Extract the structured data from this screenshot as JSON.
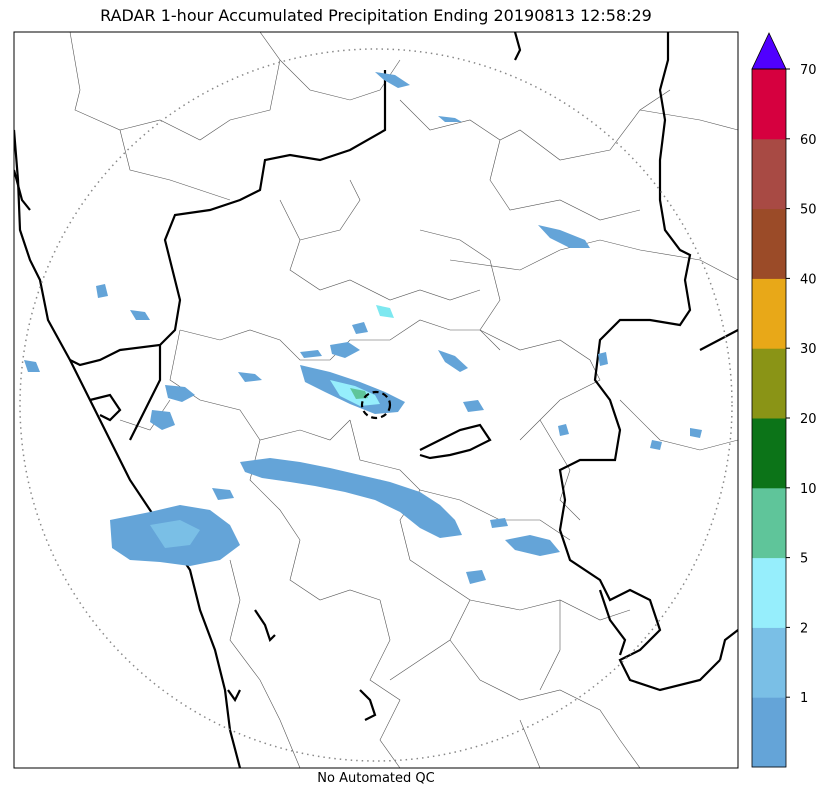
{
  "title": "RADAR 1-hour Accumulated Precipitation Ending 20190813 12:58:29",
  "footer": "No Automated QC",
  "colorbar": {
    "ticks": [
      "1",
      "2",
      "5",
      "10",
      "20",
      "30",
      "40",
      "50",
      "60",
      "70"
    ],
    "colors": [
      "#64a4d8",
      "#7abfe6",
      "#96eefc",
      "#5fc59a",
      "#0c7418",
      "#8a9416",
      "#e8a818",
      "#9b4b28",
      "#a84a44",
      "#d6003f"
    ],
    "extend_color": "#5000ff"
  },
  "colors": {
    "rain_light": "#64a4d8",
    "rain_moderate": "#7de8f0",
    "rain_green": "#3aa860",
    "border": "#000000",
    "district": "#555555",
    "range_ring": "#888888"
  }
}
